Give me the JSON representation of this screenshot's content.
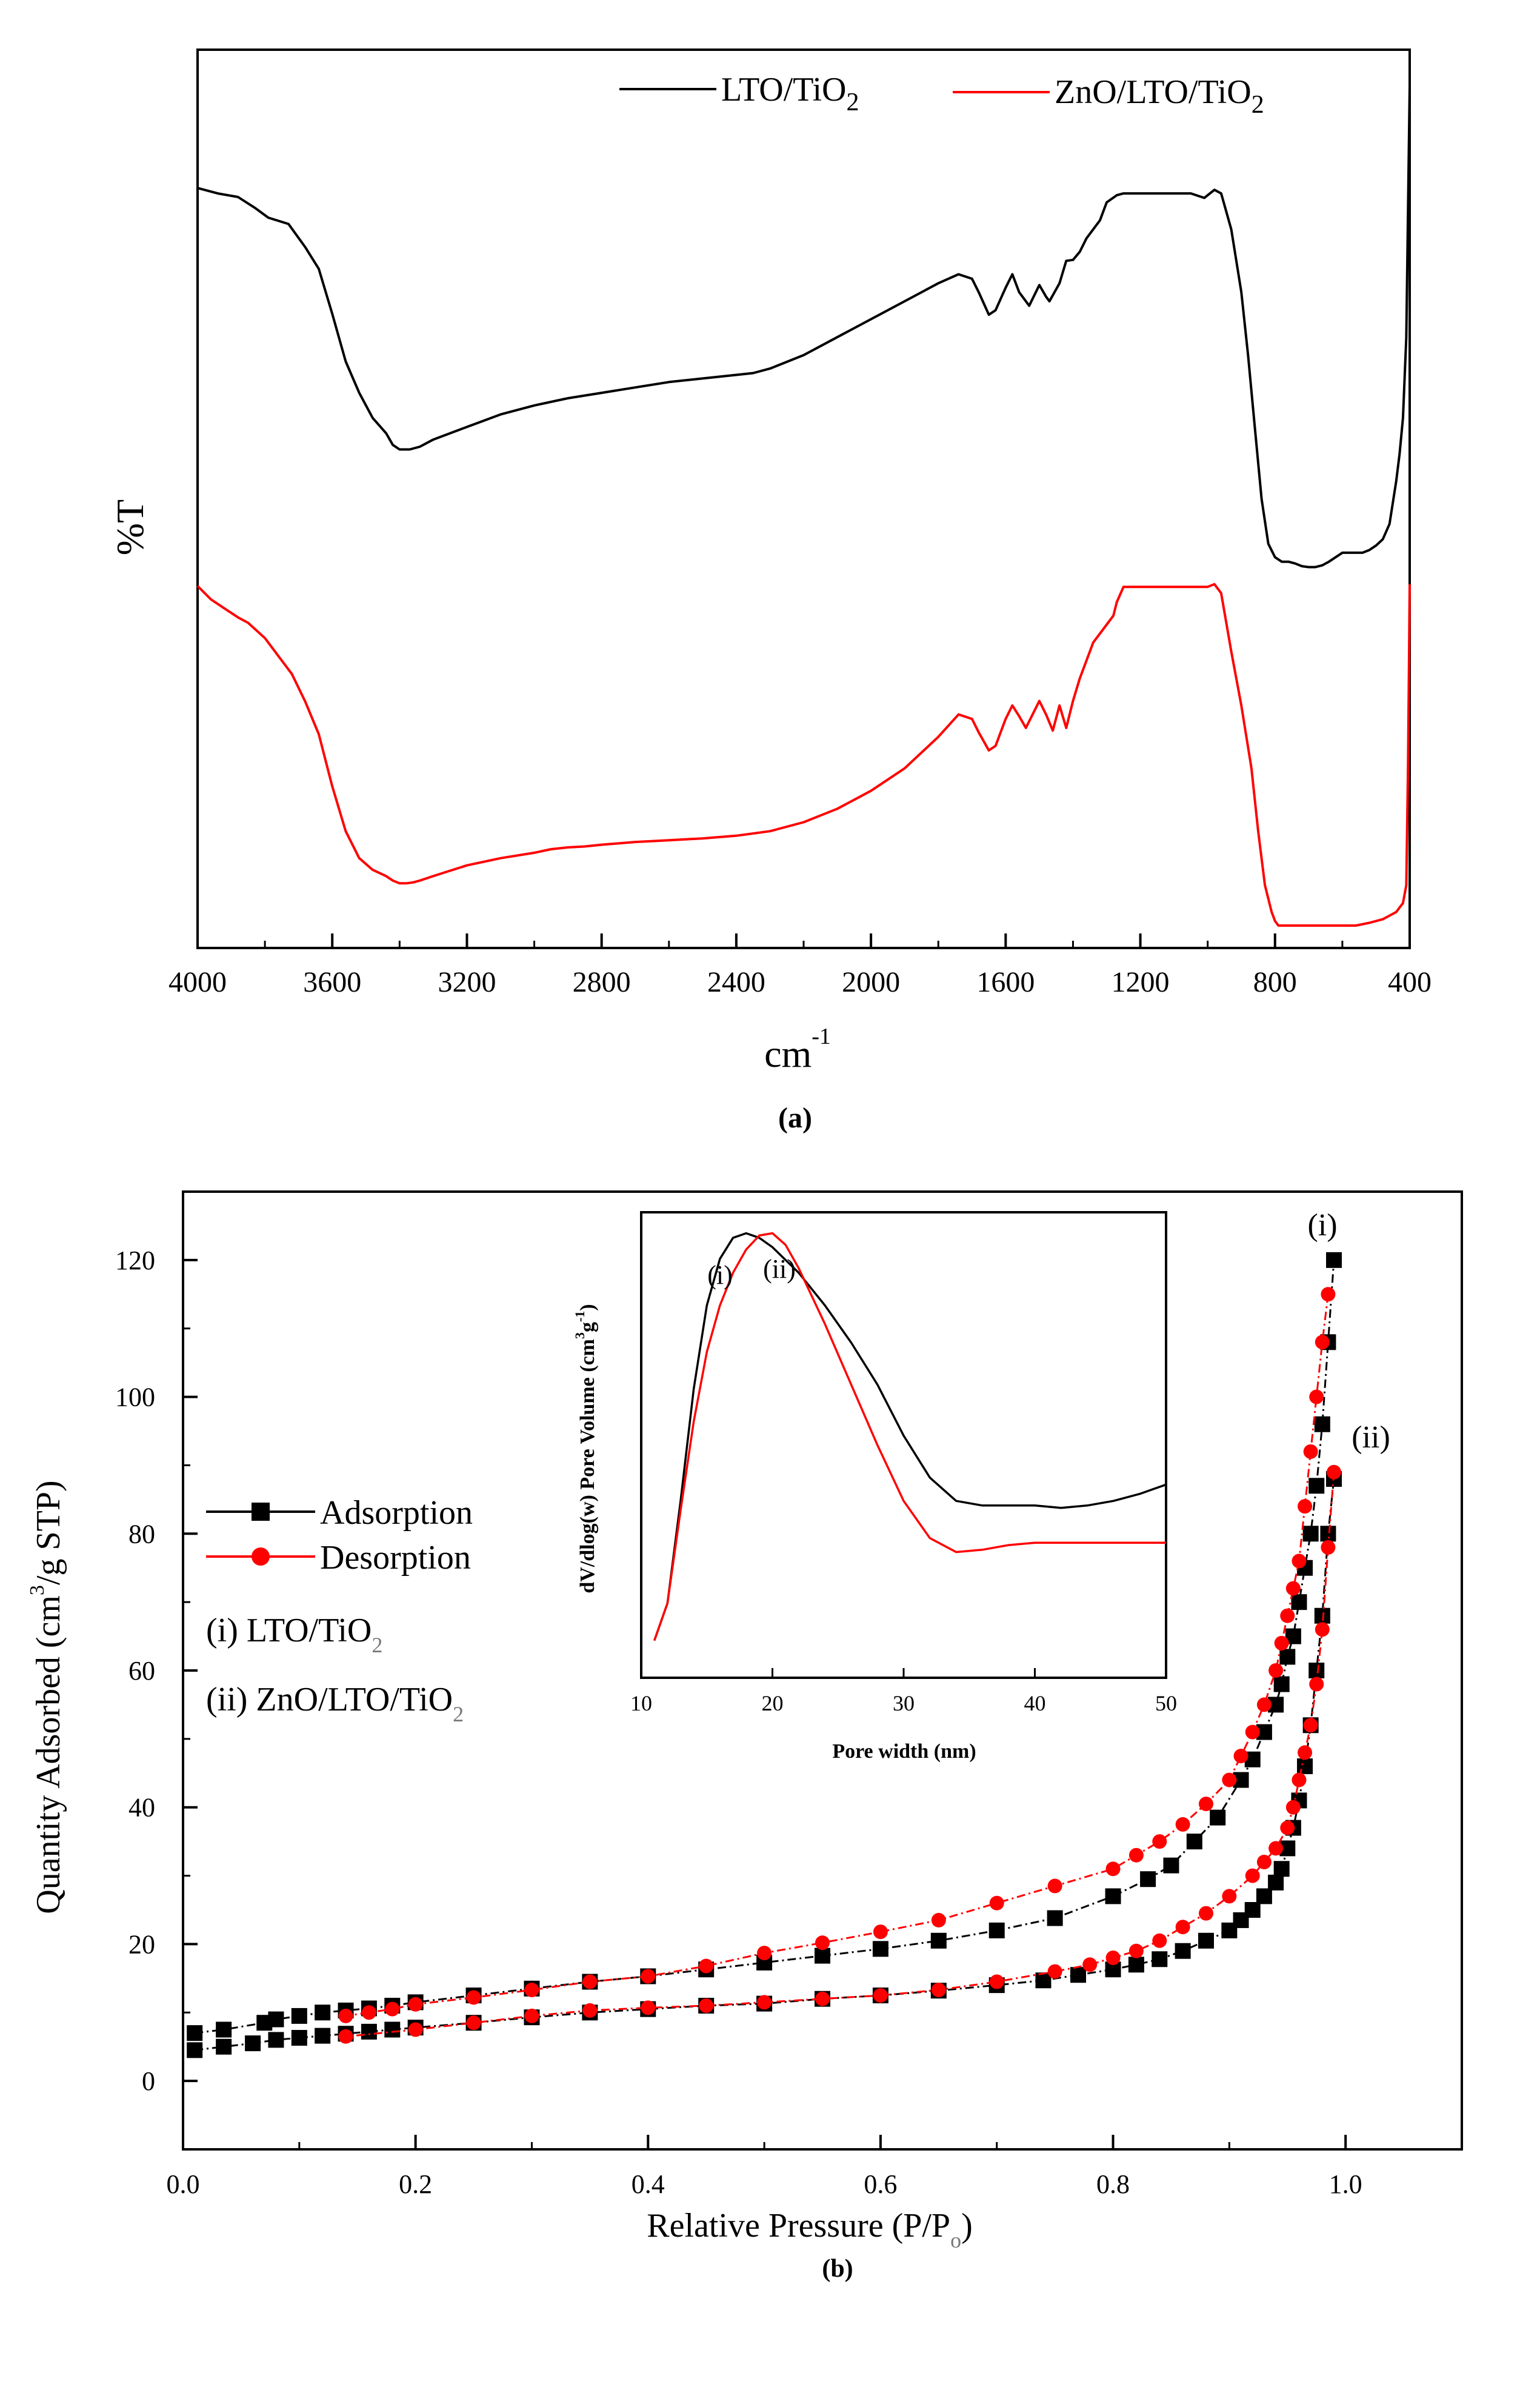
{
  "chart_data": [
    {
      "panel": "(a)",
      "type": "line",
      "xlabel": "cm",
      "xlabel_sup": "-1",
      "ylabel": "%T",
      "xlim": [
        4000,
        400
      ],
      "ylim": [
        0,
        1
      ],
      "x_ticks": [
        "4000",
        "3600",
        "3200",
        "2800",
        "2400",
        "2000",
        "1600",
        "1200",
        "800",
        "400"
      ],
      "grid": false,
      "legend_position": "top",
      "series": [
        {
          "name": "LTO/TiO",
          "name_sub": "2",
          "color": "#000000",
          "x": [
            4000,
            3940,
            3880,
            3830,
            3790,
            3730,
            3680,
            3640,
            3600,
            3560,
            3520,
            3480,
            3440,
            3420,
            3400,
            3370,
            3340,
            3300,
            3200,
            3100,
            3000,
            2900,
            2800,
            2700,
            2600,
            2500,
            2400,
            2350,
            2300,
            2200,
            2100,
            2000,
            1900,
            1800,
            1740,
            1700,
            1680,
            1650,
            1630,
            1600,
            1580,
            1560,
            1530,
            1500,
            1480,
            1470,
            1440,
            1420,
            1400,
            1380,
            1360,
            1320,
            1300,
            1270,
            1250,
            1230,
            1200,
            1150,
            1100,
            1050,
            1010,
            980,
            960,
            930,
            900,
            880,
            860,
            840,
            820,
            800,
            780,
            760,
            740,
            720,
            700,
            680,
            660,
            640,
            620,
            600,
            580,
            560,
            540,
            520,
            500,
            480,
            460,
            440,
            430,
            420,
            410,
            405,
            400
          ],
          "y": [
            0.846,
            0.84,
            0.836,
            0.824,
            0.813,
            0.806,
            0.78,
            0.756,
            0.706,
            0.653,
            0.618,
            0.59,
            0.573,
            0.56,
            0.555,
            0.555,
            0.558,
            0.566,
            0.58,
            0.594,
            0.604,
            0.612,
            0.618,
            0.624,
            0.63,
            0.634,
            0.638,
            0.64,
            0.645,
            0.66,
            0.68,
            0.7,
            0.72,
            0.74,
            0.75,
            0.745,
            0.73,
            0.705,
            0.71,
            0.735,
            0.75,
            0.73,
            0.715,
            0.738,
            0.725,
            0.72,
            0.74,
            0.765,
            0.766,
            0.775,
            0.79,
            0.81,
            0.83,
            0.838,
            0.84,
            0.84,
            0.84,
            0.84,
            0.84,
            0.84,
            0.835,
            0.844,
            0.84,
            0.8,
            0.73,
            0.66,
            0.58,
            0.5,
            0.45,
            0.435,
            0.43,
            0.43,
            0.428,
            0.425,
            0.424,
            0.424,
            0.426,
            0.43,
            0.435,
            0.44,
            0.44,
            0.44,
            0.44,
            0.443,
            0.448,
            0.455,
            0.472,
            0.52,
            0.55,
            0.59,
            0.68,
            0.82,
            0.96
          ]
        },
        {
          "name": "ZnO/LTO/TiO",
          "name_sub": "2",
          "color": "#ff0000",
          "x": [
            4000,
            3960,
            3920,
            3880,
            3850,
            3800,
            3760,
            3720,
            3680,
            3640,
            3600,
            3560,
            3520,
            3480,
            3440,
            3420,
            3400,
            3380,
            3360,
            3340,
            3300,
            3250,
            3200,
            3100,
            3000,
            2950,
            2900,
            2850,
            2800,
            2700,
            2600,
            2500,
            2400,
            2300,
            2200,
            2100,
            2000,
            1900,
            1800,
            1740,
            1700,
            1680,
            1650,
            1630,
            1600,
            1580,
            1560,
            1540,
            1500,
            1480,
            1460,
            1440,
            1420,
            1400,
            1380,
            1340,
            1300,
            1280,
            1270,
            1250,
            1200,
            1150,
            1100,
            1050,
            1000,
            980,
            960,
            930,
            900,
            870,
            850,
            830,
            810,
            800,
            790,
            760,
            720,
            680,
            640,
            600,
            560,
            520,
            480,
            460,
            440,
            430,
            420,
            410,
            405,
            402,
            400
          ],
          "y": [
            0.403,
            0.388,
            0.378,
            0.368,
            0.362,
            0.345,
            0.325,
            0.305,
            0.274,
            0.238,
            0.18,
            0.13,
            0.1,
            0.087,
            0.08,
            0.075,
            0.072,
            0.072,
            0.073,
            0.075,
            0.08,
            0.086,
            0.092,
            0.1,
            0.106,
            0.11,
            0.112,
            0.113,
            0.115,
            0.118,
            0.12,
            0.122,
            0.125,
            0.13,
            0.14,
            0.155,
            0.175,
            0.2,
            0.235,
            0.26,
            0.255,
            0.24,
            0.22,
            0.225,
            0.255,
            0.27,
            0.258,
            0.245,
            0.275,
            0.26,
            0.242,
            0.27,
            0.245,
            0.275,
            0.3,
            0.34,
            0.36,
            0.37,
            0.385,
            0.402,
            0.402,
            0.402,
            0.402,
            0.402,
            0.402,
            0.405,
            0.395,
            0.33,
            0.27,
            0.2,
            0.13,
            0.07,
            0.04,
            0.03,
            0.025,
            0.025,
            0.025,
            0.025,
            0.025,
            0.025,
            0.025,
            0.028,
            0.032,
            0.036,
            0.04,
            0.045,
            0.05,
            0.07,
            0.2,
            0.32,
            0.405
          ]
        }
      ]
    },
    {
      "panel": "(b)",
      "type": "line",
      "xlabel": "Relative Pressure (P/P",
      "xlabel_sub": "o",
      "xlabel_end": ")",
      "ylabel_pre": "Quantity Adsorbed (cm",
      "ylabel_sup": "3",
      "ylabel_post": "/g STP)",
      "xlim": [
        0,
        1.1
      ],
      "ylim": [
        -10,
        130
      ],
      "x_ticks": [
        "0.0",
        "0.2",
        "0.4",
        "0.6",
        "0.8",
        "1.0"
      ],
      "y_ticks": [
        "0",
        "20",
        "40",
        "60",
        "80",
        "100",
        "120"
      ],
      "grid": false,
      "legend_position": "left",
      "legend": [
        {
          "label": "Adsorption",
          "color": "#000000",
          "marker": "square"
        },
        {
          "label": "Desorption",
          "color": "#ff0000",
          "marker": "circle"
        }
      ],
      "sample_labels": [
        {
          "prefix": "(i) LTO/TiO",
          "sub": "2"
        },
        {
          "prefix": "(ii) ZnO/LTO/TiO",
          "sub": "2"
        }
      ],
      "curve_labels": [
        "(i)",
        "(ii)"
      ],
      "series": [
        {
          "name": "Adsorption",
          "sample": "(i)",
          "color": "#000000",
          "x": [
            0.01,
            0.035,
            0.07,
            0.08,
            0.1,
            0.12,
            0.14,
            0.16,
            0.18,
            0.2,
            0.25,
            0.3,
            0.35,
            0.4,
            0.45,
            0.5,
            0.55,
            0.6,
            0.65,
            0.7,
            0.75,
            0.8,
            0.83,
            0.85,
            0.87,
            0.89,
            0.91,
            0.92,
            0.93,
            0.94,
            0.945,
            0.95,
            0.955,
            0.96,
            0.965,
            0.97,
            0.975,
            0.98,
            0.985,
            0.99
          ],
          "y": [
            7,
            7.5,
            8.5,
            9,
            9.5,
            10,
            10.3,
            10.6,
            11,
            11.5,
            12.5,
            13.5,
            14.5,
            15.3,
            16.3,
            17.3,
            18.3,
            19.3,
            20.5,
            22,
            23.8,
            27,
            29.5,
            31.5,
            35,
            38.5,
            44,
            47,
            51,
            55,
            58,
            62,
            65,
            70,
            75,
            80,
            87,
            96,
            108,
            120
          ]
        },
        {
          "name": "Desorption",
          "sample": "(i)",
          "color": "#ff0000",
          "x": [
            0.985,
            0.98,
            0.975,
            0.97,
            0.965,
            0.96,
            0.955,
            0.95,
            0.945,
            0.94,
            0.93,
            0.92,
            0.91,
            0.9,
            0.88,
            0.86,
            0.84,
            0.82,
            0.8,
            0.75,
            0.7,
            0.65,
            0.6,
            0.55,
            0.5,
            0.45,
            0.4,
            0.35,
            0.3,
            0.25,
            0.2,
            0.18,
            0.16,
            0.14
          ],
          "y": [
            115,
            108,
            100,
            92,
            84,
            76,
            72,
            68,
            64,
            60,
            55,
            51,
            47.5,
            44,
            40.5,
            37.5,
            35,
            33,
            31,
            28.5,
            26,
            23.5,
            21.8,
            20.2,
            18.7,
            16.8,
            15.3,
            14.5,
            13.3,
            12.2,
            11.2,
            10.5,
            10,
            9.5
          ]
        },
        {
          "name": "Adsorption",
          "sample": "(ii)",
          "color": "#000000",
          "x": [
            0.01,
            0.035,
            0.06,
            0.08,
            0.1,
            0.12,
            0.14,
            0.16,
            0.18,
            0.2,
            0.25,
            0.3,
            0.35,
            0.4,
            0.45,
            0.5,
            0.55,
            0.6,
            0.65,
            0.7,
            0.74,
            0.77,
            0.8,
            0.82,
            0.84,
            0.86,
            0.88,
            0.9,
            0.91,
            0.92,
            0.93,
            0.94,
            0.945,
            0.95,
            0.955,
            0.96,
            0.965,
            0.97,
            0.975,
            0.98,
            0.985,
            0.99
          ],
          "y": [
            4.5,
            5,
            5.5,
            6,
            6.3,
            6.6,
            6.9,
            7.2,
            7.5,
            7.8,
            8.5,
            9.3,
            10,
            10.5,
            11,
            11.3,
            12,
            12.5,
            13.2,
            14,
            14.7,
            15.5,
            16.3,
            17,
            17.8,
            19,
            20.5,
            22,
            23.5,
            25,
            27,
            29,
            31,
            34,
            37,
            41,
            46,
            52,
            60,
            68,
            80,
            88
          ]
        },
        {
          "name": "Desorption",
          "sample": "(ii)",
          "color": "#ff0000",
          "x": [
            0.99,
            0.985,
            0.98,
            0.975,
            0.97,
            0.965,
            0.96,
            0.955,
            0.95,
            0.94,
            0.93,
            0.92,
            0.9,
            0.88,
            0.86,
            0.84,
            0.82,
            0.8,
            0.78,
            0.75,
            0.7,
            0.65,
            0.6,
            0.55,
            0.5,
            0.45,
            0.4,
            0.35,
            0.3,
            0.25,
            0.2,
            0.14
          ],
          "y": [
            89,
            78,
            66,
            58,
            52,
            48,
            44,
            40,
            37,
            34,
            32,
            30,
            27,
            24.5,
            22.5,
            20.5,
            19,
            18,
            17,
            16,
            14.5,
            13.3,
            12.5,
            12,
            11.5,
            11,
            10.7,
            10.3,
            9.5,
            8.5,
            7.5,
            6.5
          ]
        }
      ]
    },
    {
      "panel": "(b) inset",
      "type": "line",
      "xlabel": "Pore width (nm)",
      "ylabel_pre": "dV/dlog(w) Pore Volume (cm",
      "ylabel_sup": "3",
      "ylabel_mid": "g",
      "ylabel_sup2": "-1",
      "ylabel_end": ")",
      "xlim": [
        10,
        50
      ],
      "ylim": [
        0,
        1
      ],
      "x_ticks": [
        "10",
        "20",
        "30",
        "40",
        "50"
      ],
      "curve_labels": [
        "(i)",
        "(ii)"
      ],
      "series": [
        {
          "sample": "(i)",
          "color": "#000000",
          "x": [
            11,
            12,
            13,
            14,
            15,
            16,
            17,
            18,
            19,
            20,
            22,
            24,
            26,
            28,
            30,
            32,
            34,
            36,
            38,
            40,
            42,
            44,
            46,
            48,
            50
          ],
          "y": [
            0.08,
            0.16,
            0.38,
            0.62,
            0.8,
            0.9,
            0.945,
            0.955,
            0.945,
            0.925,
            0.87,
            0.8,
            0.72,
            0.63,
            0.52,
            0.43,
            0.38,
            0.37,
            0.37,
            0.37,
            0.365,
            0.37,
            0.38,
            0.395,
            0.415
          ]
        },
        {
          "sample": "(ii)",
          "color": "#ff0000",
          "x": [
            11,
            12,
            13,
            14,
            15,
            16,
            17,
            18,
            19,
            20,
            21,
            22,
            24,
            26,
            28,
            30,
            32,
            34,
            36,
            38,
            40,
            42,
            44,
            46,
            48,
            50
          ],
          "y": [
            0.08,
            0.16,
            0.36,
            0.55,
            0.7,
            0.8,
            0.87,
            0.92,
            0.95,
            0.955,
            0.93,
            0.88,
            0.76,
            0.63,
            0.5,
            0.38,
            0.3,
            0.27,
            0.275,
            0.285,
            0.29,
            0.29,
            0.29,
            0.29,
            0.29,
            0.29
          ]
        }
      ]
    }
  ]
}
